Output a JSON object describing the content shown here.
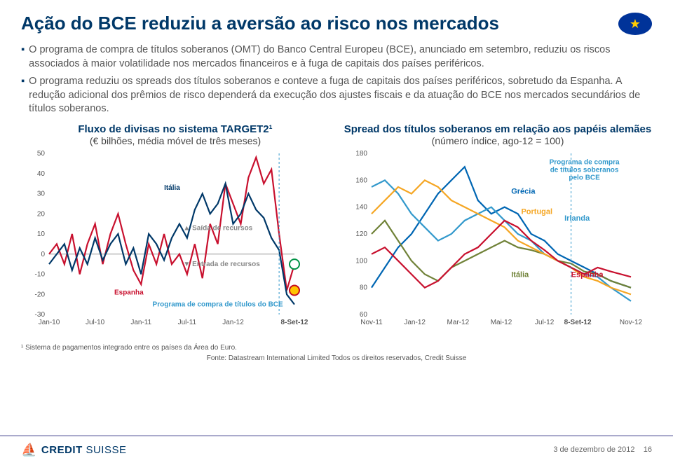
{
  "title": "Ação do BCE reduziu a aversão ao risco nos mercados",
  "bullets": [
    "O programa de compra de títulos soberanos (OMT) do Banco Central Europeu (BCE), anunciado em setembro, reduziu os riscos associados à maior volatilidade nos mercados financeiros e à fuga de capitais dos países periféricos.",
    "O programa reduziu os spreads dos títulos soberanos e conteve a fuga de capitais dos países periféricos, sobretudo da Espanha. A redução adicional dos prêmios de risco dependerá da execução dos ajustes fiscais e da atuação do BCE nos mercados secundários de títulos soberanos."
  ],
  "left_chart": {
    "title": "Fluxo de divisas no sistema TARGET2¹",
    "subtitle": "(€ bilhões, média móvel de três meses)",
    "ylim": [
      -30,
      50
    ],
    "ytick_step": 10,
    "x_labels": [
      "Jan-10",
      "Jul-10",
      "Jan-11",
      "Jul-11",
      "Jan-12",
      "8-Set-12"
    ],
    "x_positions": [
      0,
      60,
      120,
      180,
      240,
      320
    ],
    "series": [
      {
        "name": "Espanha",
        "color": "#c8102e",
        "values": [
          [
            0,
            0
          ],
          [
            10,
            5
          ],
          [
            20,
            -5
          ],
          [
            30,
            10
          ],
          [
            40,
            -10
          ],
          [
            50,
            5
          ],
          [
            60,
            15
          ],
          [
            70,
            -5
          ],
          [
            80,
            10
          ],
          [
            90,
            20
          ],
          [
            100,
            5
          ],
          [
            110,
            -8
          ],
          [
            120,
            -15
          ],
          [
            130,
            5
          ],
          [
            140,
            -5
          ],
          [
            150,
            10
          ],
          [
            160,
            -5
          ],
          [
            170,
            0
          ],
          [
            180,
            -10
          ],
          [
            190,
            5
          ],
          [
            200,
            -12
          ],
          [
            210,
            15
          ],
          [
            220,
            5
          ],
          [
            230,
            35
          ],
          [
            240,
            25
          ],
          [
            250,
            15
          ],
          [
            260,
            38
          ],
          [
            270,
            48
          ],
          [
            280,
            35
          ],
          [
            290,
            42
          ],
          [
            300,
            10
          ],
          [
            310,
            -18
          ],
          [
            320,
            -5
          ]
        ]
      },
      {
        "name": "Itália",
        "color": "#003868",
        "values": [
          [
            0,
            -5
          ],
          [
            10,
            0
          ],
          [
            20,
            5
          ],
          [
            30,
            -8
          ],
          [
            40,
            3
          ],
          [
            50,
            -5
          ],
          [
            60,
            8
          ],
          [
            70,
            -3
          ],
          [
            80,
            5
          ],
          [
            90,
            10
          ],
          [
            100,
            -5
          ],
          [
            110,
            3
          ],
          [
            120,
            -10
          ],
          [
            130,
            10
          ],
          [
            140,
            5
          ],
          [
            150,
            -3
          ],
          [
            160,
            8
          ],
          [
            170,
            15
          ],
          [
            180,
            8
          ],
          [
            190,
            22
          ],
          [
            200,
            30
          ],
          [
            210,
            20
          ],
          [
            220,
            25
          ],
          [
            230,
            35
          ],
          [
            240,
            15
          ],
          [
            250,
            20
          ],
          [
            260,
            30
          ],
          [
            270,
            22
          ],
          [
            280,
            18
          ],
          [
            290,
            8
          ],
          [
            300,
            2
          ],
          [
            310,
            -20
          ],
          [
            320,
            -25
          ]
        ]
      }
    ],
    "annotations": {
      "saida": "Saída de recursos",
      "entrada": "Entrada de recursos",
      "programa": "Programa de compra de títulos do BCE",
      "italia": "Itália",
      "espanha": "Espanha"
    },
    "accent_x_label": "8-Set-12",
    "accent_color": "#3399cc"
  },
  "right_chart": {
    "title": "Spread dos títulos soberanos em relação aos papéis alemães",
    "subtitle": "(número índice, ago-12 = 100)",
    "ylim": [
      60,
      180
    ],
    "ytick_step": 20,
    "x_labels": [
      "Nov-11",
      "Jan-12",
      "Mar-12",
      "Mai-12",
      "Jul-12",
      "8-Set-12",
      "Nov-12"
    ],
    "x_positions": [
      0,
      65,
      130,
      195,
      260,
      310,
      390
    ],
    "series": [
      {
        "name": "Grécia",
        "color": "#0066b3",
        "values": [
          [
            0,
            80
          ],
          [
            20,
            95
          ],
          [
            40,
            110
          ],
          [
            60,
            120
          ],
          [
            80,
            135
          ],
          [
            100,
            150
          ],
          [
            120,
            160
          ],
          [
            140,
            170
          ],
          [
            160,
            145
          ],
          [
            180,
            135
          ],
          [
            200,
            140
          ],
          [
            220,
            135
          ],
          [
            240,
            120
          ],
          [
            260,
            115
          ],
          [
            280,
            105
          ],
          [
            300,
            100
          ],
          [
            320,
            95
          ],
          [
            340,
            90
          ],
          [
            360,
            85
          ],
          [
            390,
            80
          ]
        ]
      },
      {
        "name": "Irlanda",
        "color": "#3399cc",
        "values": [
          [
            0,
            155
          ],
          [
            20,
            160
          ],
          [
            40,
            150
          ],
          [
            60,
            135
          ],
          [
            80,
            125
          ],
          [
            100,
            115
          ],
          [
            120,
            120
          ],
          [
            140,
            130
          ],
          [
            160,
            135
          ],
          [
            180,
            140
          ],
          [
            200,
            130
          ],
          [
            220,
            120
          ],
          [
            240,
            115
          ],
          [
            260,
            105
          ],
          [
            280,
            100
          ],
          [
            300,
            95
          ],
          [
            320,
            90
          ],
          [
            340,
            88
          ],
          [
            360,
            80
          ],
          [
            390,
            70
          ]
        ]
      },
      {
        "name": "Itália",
        "color": "#708238",
        "values": [
          [
            0,
            120
          ],
          [
            20,
            130
          ],
          [
            40,
            115
          ],
          [
            60,
            100
          ],
          [
            80,
            90
          ],
          [
            100,
            85
          ],
          [
            120,
            95
          ],
          [
            140,
            100
          ],
          [
            160,
            105
          ],
          [
            180,
            110
          ],
          [
            200,
            115
          ],
          [
            220,
            110
          ],
          [
            240,
            108
          ],
          [
            260,
            105
          ],
          [
            280,
            100
          ],
          [
            300,
            98
          ],
          [
            320,
            92
          ],
          [
            340,
            90
          ],
          [
            360,
            85
          ],
          [
            390,
            80
          ]
        ]
      },
      {
        "name": "Portugal",
        "color": "#f5a623",
        "values": [
          [
            0,
            135
          ],
          [
            20,
            145
          ],
          [
            40,
            155
          ],
          [
            60,
            150
          ],
          [
            80,
            160
          ],
          [
            100,
            155
          ],
          [
            120,
            145
          ],
          [
            140,
            140
          ],
          [
            160,
            135
          ],
          [
            180,
            130
          ],
          [
            200,
            125
          ],
          [
            220,
            115
          ],
          [
            240,
            110
          ],
          [
            260,
            105
          ],
          [
            280,
            100
          ],
          [
            300,
            95
          ],
          [
            320,
            88
          ],
          [
            340,
            85
          ],
          [
            360,
            80
          ],
          [
            390,
            75
          ]
        ]
      },
      {
        "name": "Espanha",
        "color": "#c8102e",
        "values": [
          [
            0,
            105
          ],
          [
            20,
            110
          ],
          [
            40,
            100
          ],
          [
            60,
            90
          ],
          [
            80,
            80
          ],
          [
            100,
            85
          ],
          [
            120,
            95
          ],
          [
            140,
            105
          ],
          [
            160,
            110
          ],
          [
            180,
            120
          ],
          [
            200,
            130
          ],
          [
            220,
            125
          ],
          [
            240,
            115
          ],
          [
            260,
            108
          ],
          [
            280,
            100
          ],
          [
            300,
            95
          ],
          [
            320,
            90
          ],
          [
            340,
            95
          ],
          [
            360,
            92
          ],
          [
            390,
            88
          ]
        ]
      }
    ],
    "labels": {
      "grecia": "Grécia",
      "portugal": "Portugal",
      "irlanda": "Irlanda",
      "italia": "Itália",
      "espanha": "Espanha",
      "programa": "Programa de compra de títulos soberanos pelo BCE"
    },
    "accent_x_label": "8-Set-12",
    "accent_color": "#3399cc"
  },
  "footnote": "¹ Sistema de pagamentos integrado entre os países da Área do Euro.",
  "source": "Fonte: Datastream International Limited Todos os direitos reservados, Credit Suisse",
  "footer": {
    "brand_a": "CREDIT",
    "brand_b": "SUISSE",
    "date": "3 de dezembro de 2012",
    "page": "16"
  }
}
